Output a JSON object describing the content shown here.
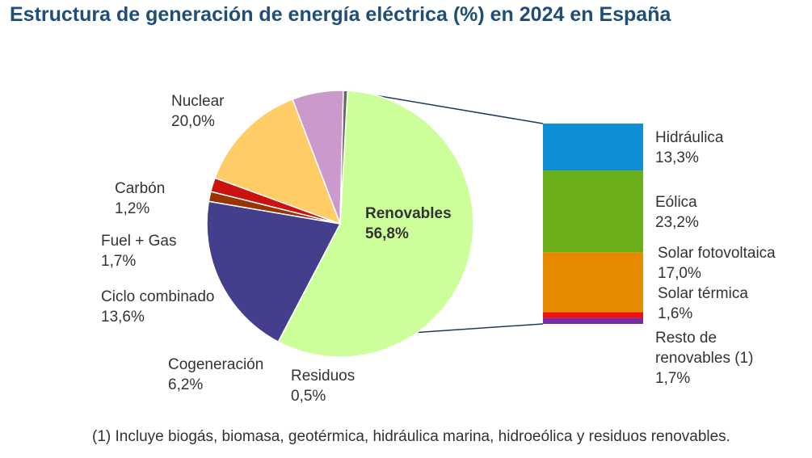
{
  "title": "Estructura de generación de energía eléctrica (%) en 2024 en España",
  "footnote": "(1) Incluye biogás, biomasa, geotérmica, hidráulica marina, hidroeólica y residuos renovables.",
  "chart_data": [
    {
      "type": "pie",
      "slices": [
        {
          "label": "Renovables",
          "value_text": "56,8%",
          "value": 56.8,
          "color": "#ccff99"
        },
        {
          "label": "Nuclear",
          "value_text": "20,0%",
          "value": 20.0,
          "color": "#443f8c"
        },
        {
          "label": "Carbón",
          "value_text": "1,2%",
          "value": 1.2,
          "color": "#993300"
        },
        {
          "label": "Fuel + Gas",
          "value_text": "1,7%",
          "value": 1.7,
          "color": "#cc1111"
        },
        {
          "label": "Ciclo combinado",
          "value_text": "13,6%",
          "value": 13.6,
          "color": "#ffcc66"
        },
        {
          "label": "Cogeneración",
          "value_text": "6,2%",
          "value": 6.2,
          "color": "#cc99cc"
        },
        {
          "label": "Residuos",
          "value_text": "0,5%",
          "value": 0.5,
          "color": "#666666"
        }
      ]
    },
    {
      "type": "bar",
      "stacked": true,
      "segments": [
        {
          "label": "Hidráulica",
          "value_text": "13,3%",
          "value": 13.3,
          "color": "#0c8fd4"
        },
        {
          "label": "Eólica",
          "value_text": "23,2%",
          "value": 23.2,
          "color": "#6aae1a"
        },
        {
          "label": "Solar fotovoltaica",
          "value_text": "17,0%",
          "value": 17.0,
          "color": "#e88a00"
        },
        {
          "label": "Solar térmica",
          "value_text": "1,6%",
          "value": 1.6,
          "color": "#ee1111"
        },
        {
          "label": "Resto de renovables (1)",
          "value_text": "1,7%",
          "value": 1.7,
          "color": "#7a2da0"
        }
      ]
    }
  ]
}
